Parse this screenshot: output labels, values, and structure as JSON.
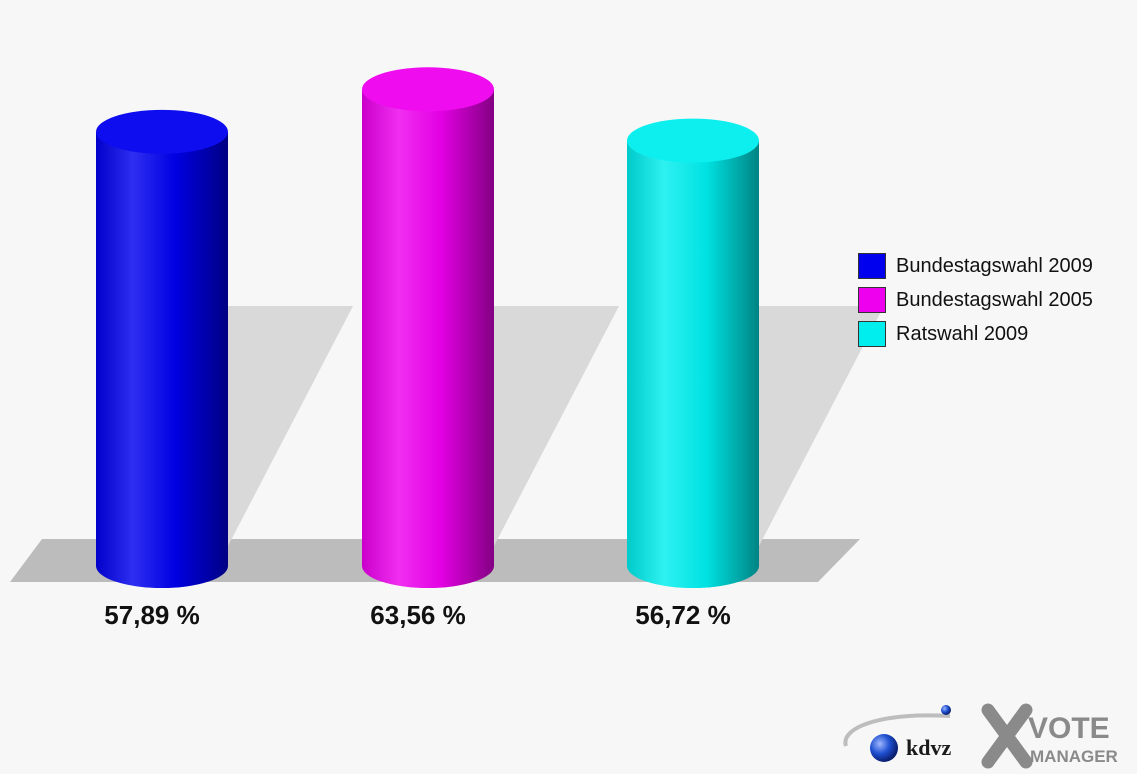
{
  "chart_data": {
    "type": "bar",
    "style": "3d-cylinder",
    "categories": [
      "Bundestagswahl 2009",
      "Bundestagswahl 2005",
      "Ratswahl 2009"
    ],
    "values": [
      57.89,
      63.56,
      56.72
    ],
    "value_labels": [
      "57,89 %",
      "63,56 %",
      "56,72 %"
    ],
    "colors": [
      "#0000ee",
      "#ee00ee",
      "#00eeee"
    ],
    "ylim": [
      0,
      65
    ],
    "grid": false,
    "legend": "right",
    "title": "",
    "xlabel": "",
    "ylabel": ""
  },
  "legend": {
    "items": [
      {
        "label": "Bundestagswahl 2009",
        "color": "#0000ee"
      },
      {
        "label": "Bundestagswahl 2005",
        "color": "#ee00ee"
      },
      {
        "label": "Ratswahl 2009",
        "color": "#00eeee"
      }
    ]
  },
  "logo": {
    "brand": "kdvz",
    "product_line1": "VOTE",
    "product_line2": "MANAGER"
  }
}
